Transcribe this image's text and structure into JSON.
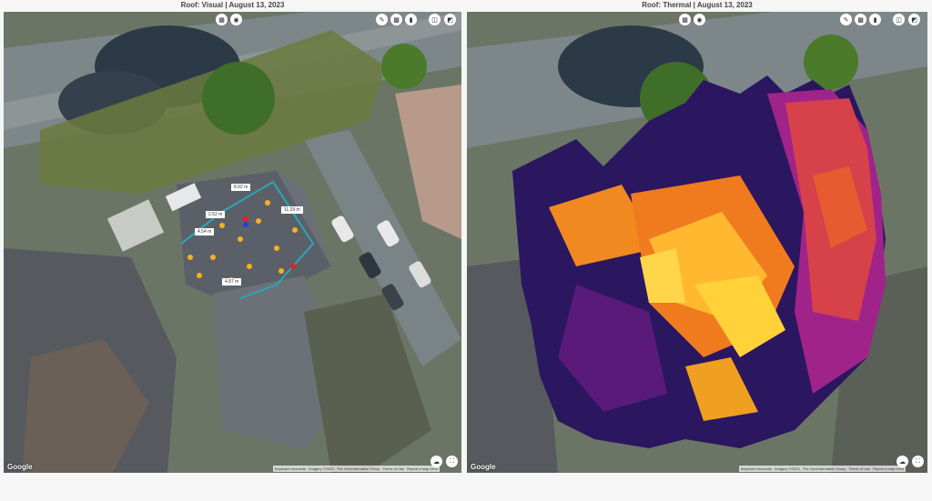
{
  "panels": [
    {
      "title": "Roof: Visual | August 13, 2023"
    },
    {
      "title": "Roof: Thermal | August 13, 2023"
    }
  ],
  "toolbar_icons": [
    "layout-compare-icon",
    "camera-icon",
    "pencil-icon",
    "grid-icon",
    "trash-icon",
    "split-view-icon",
    "screenshot-icon"
  ],
  "map": {
    "google_logo": "Google",
    "keyboard_shortcuts": "Keyboard shortcuts",
    "imagery": "Imagery ©2023 , The GeoInformation Group",
    "terms": "Terms of Use",
    "report": "Report a map error"
  },
  "measurements": [
    "8.02 m",
    "2.52 m",
    "11.29 m",
    "4.54 m",
    "4.87 m"
  ],
  "colors": {
    "outline": "#2aa7b8",
    "thermal_hot": "#ffd23a",
    "thermal_mid": "#f07a1e",
    "thermal_cool": "#7a1f8f",
    "thermal_cold": "#1d0f45"
  }
}
